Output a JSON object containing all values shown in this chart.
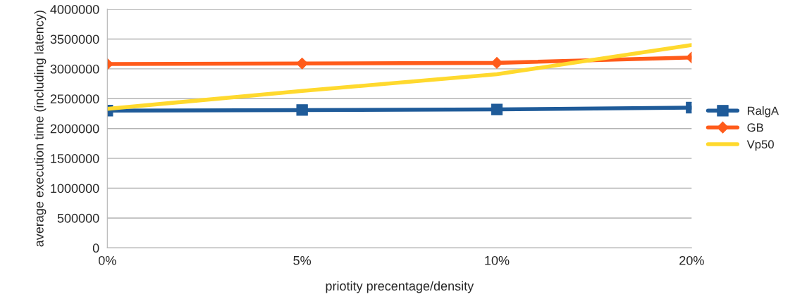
{
  "chart_data": {
    "type": "line",
    "xlabel": "priotity precentage/density",
    "ylabel": "average execution time (including latency)",
    "categories": [
      "0%",
      "5%",
      "10%",
      "20%"
    ],
    "series": [
      {
        "name": "RalgA",
        "color": "#1f5b99",
        "marker": "square",
        "values": [
          2300000,
          2310000,
          2320000,
          2350000
        ]
      },
      {
        "name": "GB",
        "color": "#ff5b1a",
        "marker": "diamond",
        "values": [
          3080000,
          3090000,
          3100000,
          3190000
        ]
      },
      {
        "name": "Vp50",
        "color": "#ffd92e",
        "marker": "none",
        "values": [
          2330000,
          2630000,
          2910000,
          3400000
        ]
      }
    ],
    "ylim": [
      0,
      4000000
    ],
    "yticks": [
      0,
      500000,
      1000000,
      1500000,
      2000000,
      2500000,
      3000000,
      3500000,
      4000000
    ],
    "grid": "y",
    "legend": "right",
    "line_style": "solid"
  }
}
